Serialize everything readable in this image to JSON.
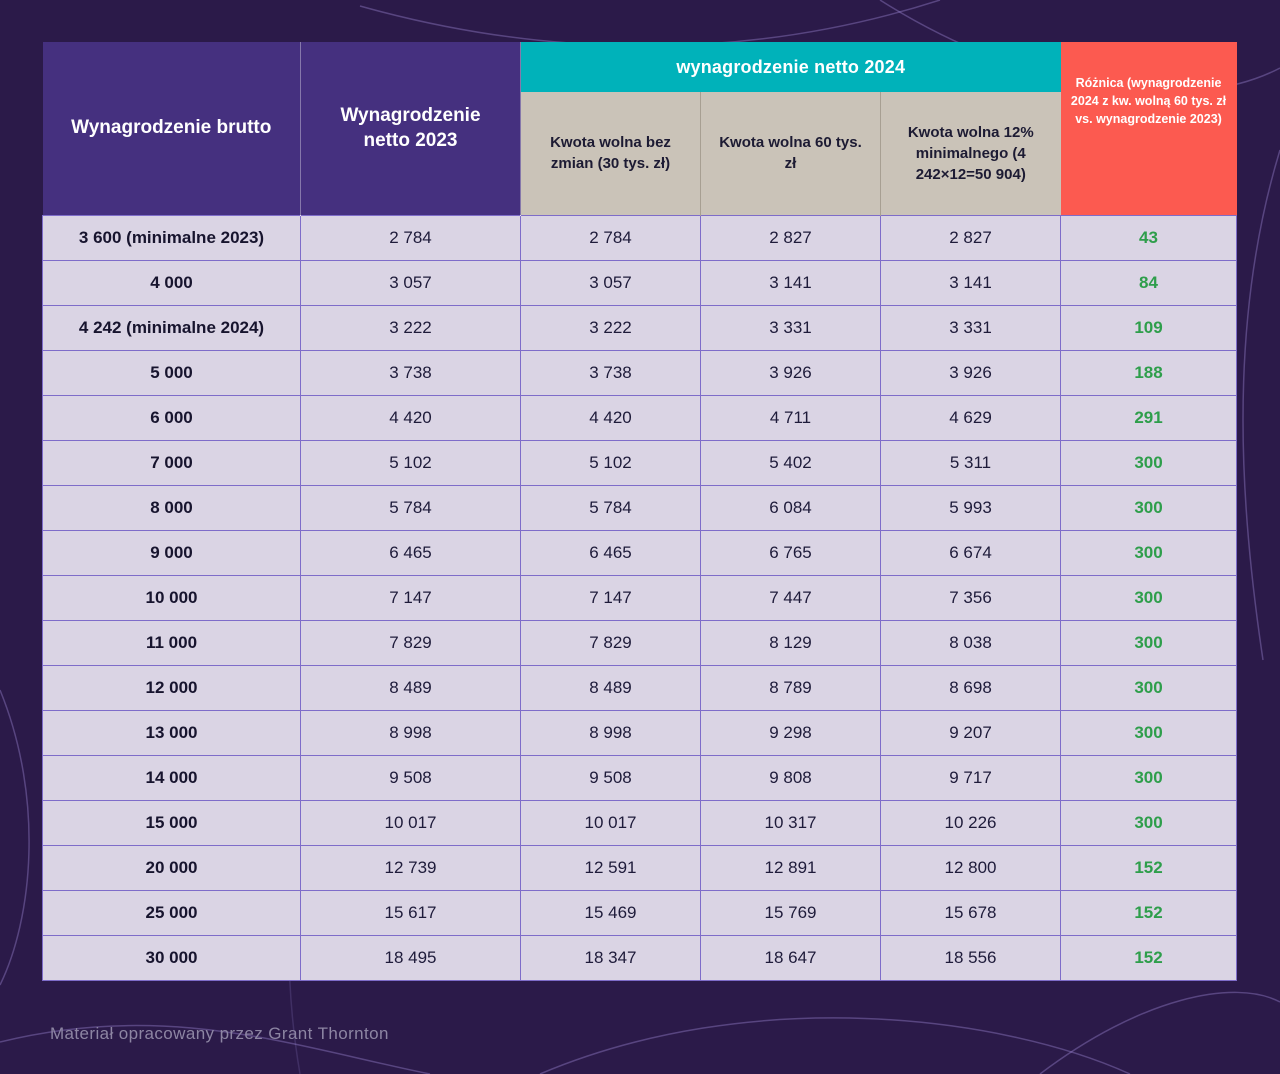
{
  "colors": {
    "background": "#2b1a49",
    "header_purple": "#45307f",
    "header_teal": "#00b2ba",
    "subheader_beige": "#cac3b8",
    "header_red": "#fc5a50",
    "row_background": "#dad4e4",
    "row_border": "#7e6cc9",
    "difference_green": "#2e9e4b"
  },
  "chart_data": {
    "type": "table",
    "group_header_2024": "wynagrodzenie netto 2024",
    "columns": [
      {
        "key": "brutto",
        "label": "Wynagrodzenie brutto"
      },
      {
        "key": "netto2023",
        "label": "Wynagrodzenie netto 2023"
      },
      {
        "key": "kwota30",
        "label": "Kwota wolna bez zmian (30 tys. zł)"
      },
      {
        "key": "kwota60",
        "label": "Kwota wolna 60 tys. zł"
      },
      {
        "key": "kwota12",
        "label": "Kwota wolna 12% minimalnego (4 242×12=50 904)"
      },
      {
        "key": "roznica",
        "label": "Różnica (wynagrodzenie 2024 z kw. wolną 60 tys. zł vs. wynagrodzenie 2023)"
      }
    ],
    "rows": [
      [
        "3 600 (minimalne 2023)",
        "2 784",
        "2 784",
        "2 827",
        "2 827",
        "43"
      ],
      [
        "4 000",
        "3 057",
        "3 057",
        "3 141",
        "3 141",
        "84"
      ],
      [
        "4 242 (minimalne 2024)",
        "3 222",
        "3 222",
        "3 331",
        "3 331",
        "109"
      ],
      [
        "5 000",
        "3 738",
        "3 738",
        "3 926",
        "3 926",
        "188"
      ],
      [
        "6 000",
        "4 420",
        "4 420",
        "4 711",
        "4 629",
        "291"
      ],
      [
        "7 000",
        "5 102",
        "5 102",
        "5 402",
        "5 311",
        "300"
      ],
      [
        "8 000",
        "5 784",
        "5 784",
        "6 084",
        "5 993",
        "300"
      ],
      [
        "9 000",
        "6 465",
        "6 465",
        "6 765",
        "6 674",
        "300"
      ],
      [
        "10 000",
        "7 147",
        "7 147",
        "7 447",
        "7 356",
        "300"
      ],
      [
        "11 000",
        "7 829",
        "7 829",
        "8 129",
        "8 038",
        "300"
      ],
      [
        "12 000",
        "8 489",
        "8 489",
        "8 789",
        "8 698",
        "300"
      ],
      [
        "13 000",
        "8 998",
        "8 998",
        "9 298",
        "9 207",
        "300"
      ],
      [
        "14 000",
        "9 508",
        "9 508",
        "9 808",
        "9 717",
        "300"
      ],
      [
        "15 000",
        "10 017",
        "10 017",
        "10 317",
        "10 226",
        "300"
      ],
      [
        "20 000",
        "12 739",
        "12 591",
        "12 891",
        "12 800",
        "152"
      ],
      [
        "25 000",
        "15 617",
        "15 469",
        "15 769",
        "15 678",
        "152"
      ],
      [
        "30 000",
        "18 495",
        "18 347",
        "18 647",
        "18 556",
        "152"
      ]
    ]
  },
  "footer": {
    "credit": "Materiał opracowany przez Grant Thornton"
  }
}
